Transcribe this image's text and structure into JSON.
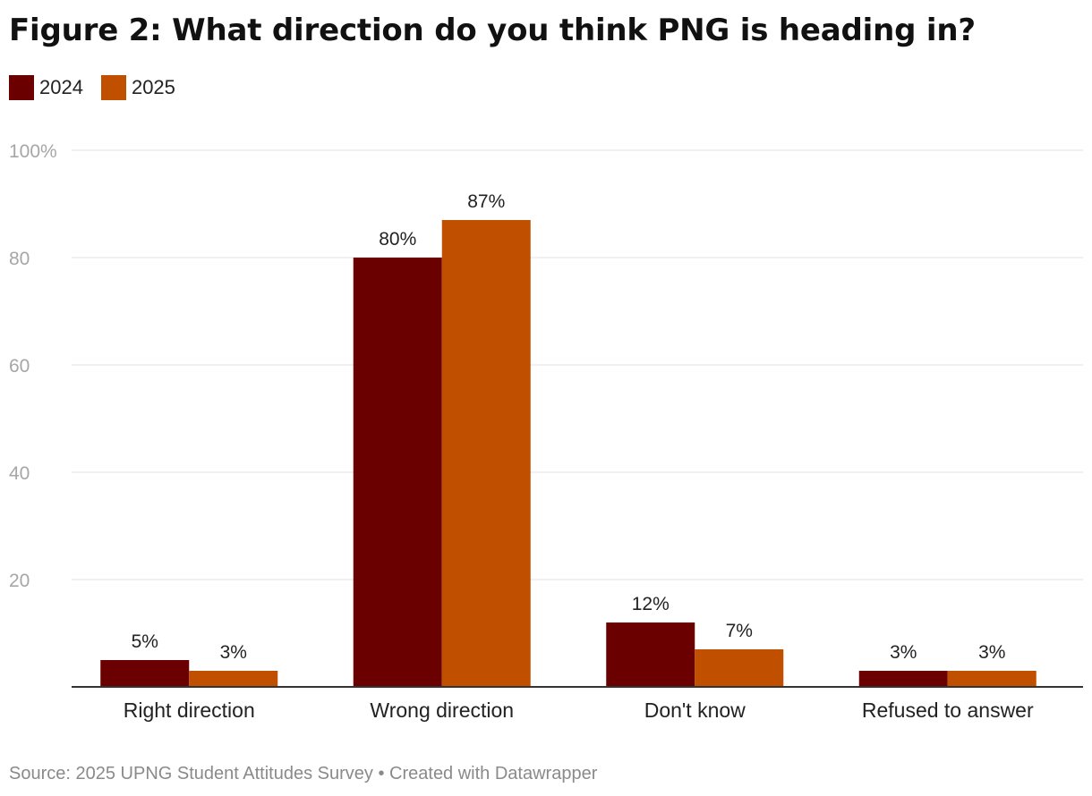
{
  "title": "Figure 2: What direction do you think PNG is heading in?",
  "legend": [
    {
      "label": "2024",
      "color": "#6b0000"
    },
    {
      "label": "2025",
      "color": "#c05000"
    }
  ],
  "footer": {
    "source": "Source: 2025 UPNG Student Attitudes Survey",
    "separator": " • ",
    "credit": "Created with Datawrapper"
  },
  "chart_data": {
    "type": "bar",
    "categories": [
      "Right direction",
      "Wrong direction",
      "Don't know",
      "Refused to answer"
    ],
    "series": [
      {
        "name": "2024",
        "values": [
          5,
          80,
          12,
          3
        ],
        "labels": [
          "5%",
          "80%",
          "12%",
          "3%"
        ],
        "color": "#6b0000"
      },
      {
        "name": "2025",
        "values": [
          3,
          87,
          7,
          3
        ],
        "labels": [
          "3%",
          "87%",
          "7%",
          "3%"
        ],
        "color": "#c05000"
      }
    ],
    "ylim": [
      0,
      100
    ],
    "yticks": [
      20,
      40,
      60,
      80,
      100
    ],
    "ytick_labels": [
      "20",
      "40",
      "60",
      "80",
      "100%"
    ],
    "grid": true,
    "legend_position": "top-left"
  }
}
